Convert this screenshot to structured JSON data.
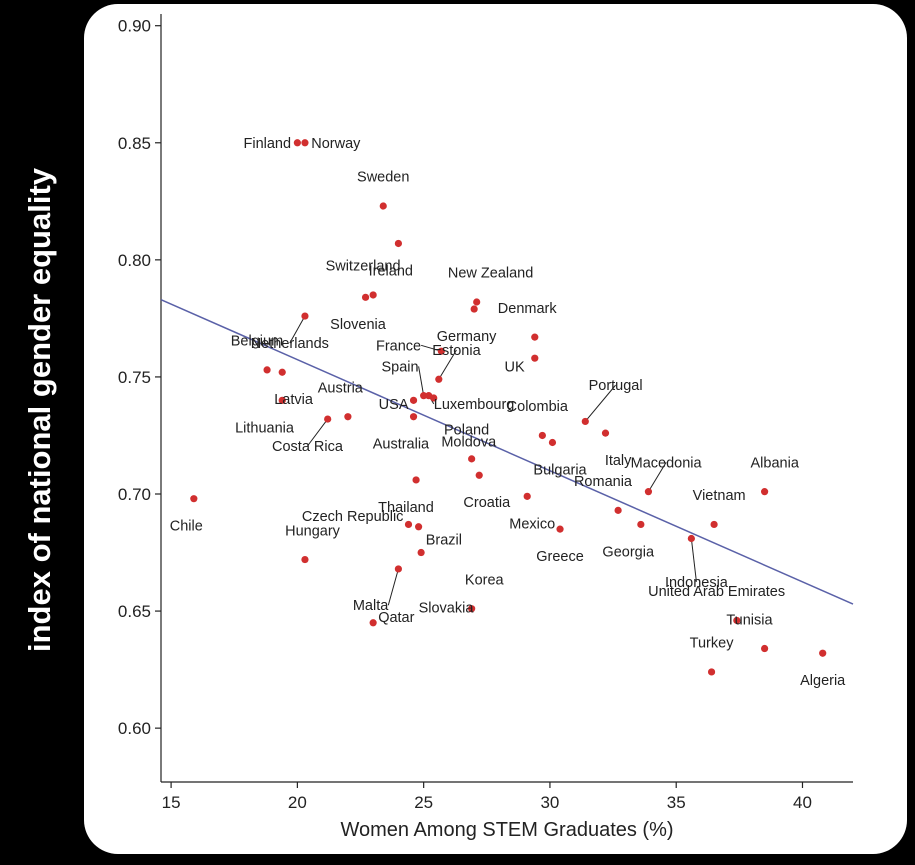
{
  "ylabel": "index of national gender equality",
  "chart_data": {
    "type": "scatter",
    "title": "",
    "xlabel": "Women Among STEM Graduates (%)",
    "ylabel": "index of national gender equality",
    "xlim": [
      14.6,
      42.0
    ],
    "ylim": [
      0.577,
      0.905
    ],
    "x_ticks": [
      15,
      20,
      25,
      30,
      35,
      40
    ],
    "y_ticks": [
      0.6,
      0.65,
      0.7,
      0.75,
      0.8,
      0.85,
      0.9
    ],
    "x_tick_labels": [
      "15",
      "20",
      "25",
      "30",
      "35",
      "40"
    ],
    "y_tick_labels": [
      "0.60",
      "0.65",
      "0.70",
      "0.75",
      "0.80",
      "0.85",
      "0.90"
    ],
    "grid": false,
    "point_color": "#d12f2f",
    "trend_color": "#5a61a8",
    "trendline": {
      "x": [
        14.6,
        42.0
      ],
      "y": [
        0.783,
        0.653
      ]
    },
    "points": [
      {
        "label": "Finland",
        "x": 20.0,
        "y": 0.85,
        "anchor": "end",
        "lx": -0.25,
        "ly": 0.0
      },
      {
        "label": "Norway",
        "x": 20.3,
        "y": 0.85,
        "anchor": "start",
        "lx": 0.25,
        "ly": 0.0
      },
      {
        "label": "Sweden",
        "x": 23.4,
        "y": 0.823,
        "anchor": "middle",
        "lx": 0.0,
        "ly": 0.0125
      },
      {
        "label": "Ireland",
        "x": 24.0,
        "y": 0.807,
        "anchor": "middle",
        "lx": -0.3,
        "ly": -0.0115
      },
      {
        "label": "Switzerland",
        "x": 23.0,
        "y": 0.785,
        "anchor": "middle",
        "lx": -0.4,
        "ly": 0.0125
      },
      {
        "label": "Slovenia",
        "x": 22.7,
        "y": 0.784,
        "anchor": "middle",
        "lx": -0.3,
        "ly": -0.0115
      },
      {
        "label": "Netherlands",
        "x": 20.3,
        "y": 0.776,
        "anchor": "middle",
        "lx": -0.6,
        "ly": -0.0115
      },
      {
        "label": "New Zealand",
        "x": 27.1,
        "y": 0.782,
        "anchor": "middle",
        "lx": 0.55,
        "ly": 0.0125
      },
      {
        "label": "Germany",
        "x": 27.0,
        "y": 0.779,
        "anchor": "middle",
        "lx": -0.3,
        "ly": -0.0115
      },
      {
        "label": "Denmark",
        "x": 29.4,
        "y": 0.767,
        "anchor": "middle",
        "lx": -0.3,
        "ly": 0.0125
      },
      {
        "label": "UK",
        "x": 29.4,
        "y": 0.758,
        "anchor": "end",
        "lx": -0.4,
        "ly": -0.0035
      },
      {
        "label": "France",
        "x": 25.7,
        "y": 0.761,
        "anchor": "end",
        "lx": -0.8,
        "ly": 0.0025
      },
      {
        "label": "Estonia",
        "x": 25.6,
        "y": 0.749,
        "anchor": "middle",
        "lx": 0.7,
        "ly": 0.0125
      },
      {
        "label": "Belgium",
        "x": 18.8,
        "y": 0.753,
        "anchor": "middle",
        "lx": -0.4,
        "ly": 0.0125
      },
      {
        "label": "Latvia",
        "x": 19.4,
        "y": 0.752,
        "anchor": "middle",
        "lx": 0.45,
        "ly": -0.0115
      },
      {
        "label": "Lithuania",
        "x": 19.4,
        "y": 0.74,
        "anchor": "middle",
        "lx": -0.7,
        "ly": -0.0115
      },
      {
        "label": "Spain",
        "x": 25.0,
        "y": 0.742,
        "anchor": "end",
        "lx": -0.2,
        "ly": 0.0125
      },
      {
        "label": "USA",
        "x": 24.6,
        "y": 0.74,
        "anchor": "end",
        "lx": -0.2,
        "ly": -0.0015
      },
      {
        "label": "Luxembourg",
        "x": 25.2,
        "y": 0.742,
        "anchor": "start",
        "lx": 0.2,
        "ly": -0.0035
      },
      {
        "label": "Moldova",
        "x": 25.4,
        "y": 0.741,
        "anchor": "start",
        "lx": 0.3,
        "ly": -0.0185
      },
      {
        "label": "Austria",
        "x": 22.0,
        "y": 0.733,
        "anchor": "middle",
        "lx": -0.3,
        "ly": 0.0125
      },
      {
        "label": "Costa Rica",
        "x": 21.2,
        "y": 0.732,
        "anchor": "middle",
        "lx": -0.8,
        "ly": -0.0115
      },
      {
        "label": "Australia",
        "x": 24.6,
        "y": 0.733,
        "anchor": "middle",
        "lx": -0.5,
        "ly": -0.0115
      },
      {
        "label": "Colombia",
        "x": 29.7,
        "y": 0.725,
        "anchor": "middle",
        "lx": -0.2,
        "ly": 0.0125
      },
      {
        "label": "Portugal",
        "x": 31.4,
        "y": 0.731,
        "anchor": "middle",
        "lx": 1.2,
        "ly": 0.0155
      },
      {
        "label": "Italy",
        "x": 32.2,
        "y": 0.726,
        "anchor": "middle",
        "lx": 0.5,
        "ly": -0.0115
      },
      {
        "label": "Bulgaria",
        "x": 30.1,
        "y": 0.722,
        "anchor": "middle",
        "lx": 0.3,
        "ly": -0.0115
      },
      {
        "label": "Poland",
        "x": 26.9,
        "y": 0.715,
        "anchor": "middle",
        "lx": -0.2,
        "ly": 0.0125
      },
      {
        "label": "Croatia",
        "x": 27.2,
        "y": 0.708,
        "anchor": "middle",
        "lx": 0.3,
        "ly": -0.0115
      },
      {
        "label": "Thailand",
        "x": 24.7,
        "y": 0.706,
        "anchor": "middle",
        "lx": -0.4,
        "ly": -0.0115
      },
      {
        "label": "Mexico",
        "x": 29.1,
        "y": 0.699,
        "anchor": "middle",
        "lx": 0.2,
        "ly": -0.0115
      },
      {
        "label": "Macedonia",
        "x": 33.9,
        "y": 0.701,
        "anchor": "middle",
        "lx": 0.7,
        "ly": 0.0125
      },
      {
        "label": "Romania",
        "x": 32.7,
        "y": 0.693,
        "anchor": "middle",
        "lx": -0.6,
        "ly": 0.0125
      },
      {
        "label": "Albania",
        "x": 38.5,
        "y": 0.701,
        "anchor": "middle",
        "lx": 0.4,
        "ly": 0.0125
      },
      {
        "label": "Vietnam",
        "x": 36.5,
        "y": 0.687,
        "anchor": "middle",
        "lx": 0.2,
        "ly": 0.0125
      },
      {
        "label": "Georgia",
        "x": 33.6,
        "y": 0.687,
        "anchor": "middle",
        "lx": -0.5,
        "ly": -0.0115
      },
      {
        "label": "Indonesia",
        "x": 35.6,
        "y": 0.681,
        "anchor": "middle",
        "lx": 0.2,
        "ly": -0.0185
      },
      {
        "label": "Chile",
        "x": 15.9,
        "y": 0.698,
        "anchor": "middle",
        "lx": -0.3,
        "ly": -0.0115
      },
      {
        "label": "Czech Republic",
        "x": 24.4,
        "y": 0.687,
        "anchor": "end",
        "lx": -0.2,
        "ly": 0.0035
      },
      {
        "label": "Brazil",
        "x": 24.9,
        "y": 0.675,
        "anchor": "middle",
        "lx": 0.9,
        "ly": 0.0055
      },
      {
        "label": "Greece",
        "x": 30.4,
        "y": 0.685,
        "anchor": "middle",
        "lx": 0.0,
        "ly": -0.0115
      },
      {
        "label": "Hungary",
        "x": 20.3,
        "y": 0.672,
        "anchor": "middle",
        "lx": 0.3,
        "ly": 0.0125
      },
      {
        "label": "Slovakia",
        "x": 24.8,
        "y": 0.686,
        "anchor": "start",
        "lx": 0.0,
        "ly": -0.0345
      },
      {
        "label": "Malta",
        "x": 24.0,
        "y": 0.668,
        "anchor": "end",
        "lx": -0.4,
        "ly": -0.0155
      },
      {
        "label": "Korea",
        "x": 26.9,
        "y": 0.651,
        "anchor": "middle",
        "lx": 0.5,
        "ly": 0.0125
      },
      {
        "label": "Qatar",
        "x": 23.0,
        "y": 0.645,
        "anchor": "start",
        "lx": 0.2,
        "ly": 0.0025
      },
      {
        "label": "United Arab Emirates",
        "x": 37.4,
        "y": 0.646,
        "anchor": "middle",
        "lx": -0.8,
        "ly": 0.0125
      },
      {
        "label": "Tunisia",
        "x": 38.5,
        "y": 0.634,
        "anchor": "middle",
        "lx": -0.6,
        "ly": 0.0125
      },
      {
        "label": "Turkey",
        "x": 36.4,
        "y": 0.624,
        "anchor": "middle",
        "lx": 0.0,
        "ly": 0.0125
      },
      {
        "label": "Algeria",
        "x": 40.8,
        "y": 0.632,
        "anchor": "middle",
        "lx": 0.0,
        "ly": -0.0115
      }
    ],
    "leaders": [
      "Netherlands",
      "France",
      "Estonia",
      "Spain",
      "Luxembourg",
      "Costa Rica",
      "Portugal",
      "Macedonia",
      "Indonesia",
      "Malta"
    ]
  }
}
